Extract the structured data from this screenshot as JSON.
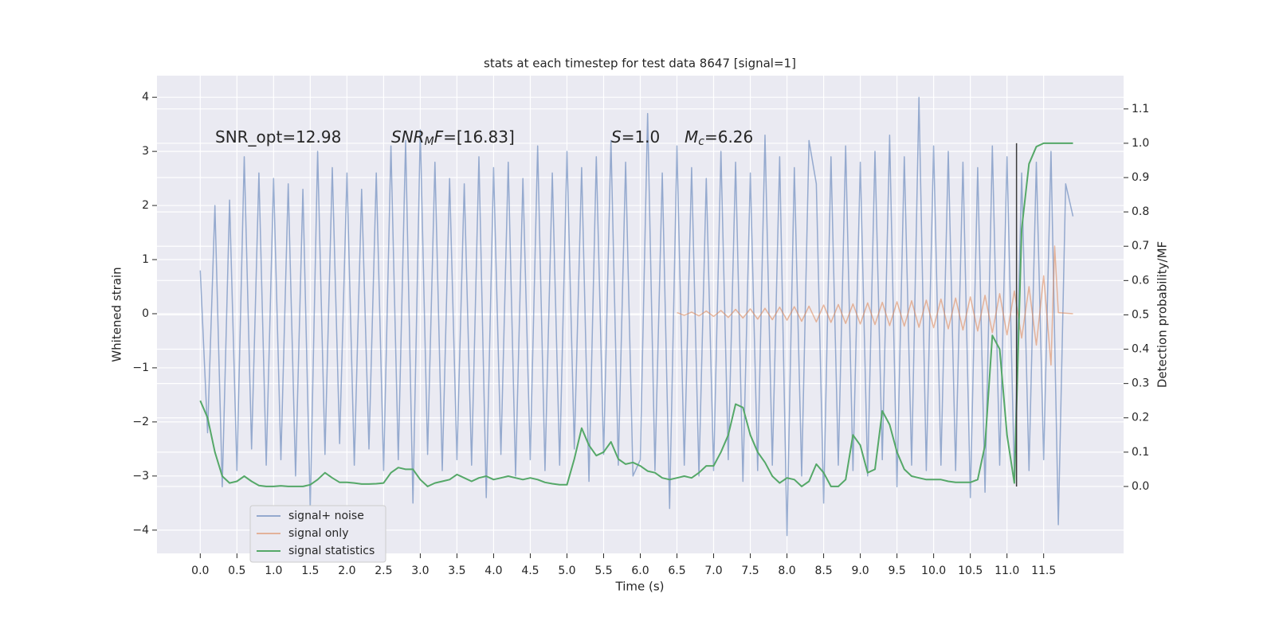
{
  "chart_data": {
    "type": "line",
    "title": "stats at each timestep for test data 8647 [signal=1]",
    "xlabel": "Time (s)",
    "ylabel": "Whitened strain",
    "y2label": "Detection probability/MF",
    "annotations": [
      {
        "parts": [
          {
            "text": "SNR_opt=12.98"
          }
        ]
      },
      {
        "parts": [
          {
            "text": "SNR",
            "italic": true
          },
          {
            "text": "M",
            "italic": true,
            "sub": true
          },
          {
            "text": "F",
            "italic": true
          },
          {
            "text": "=[16.83]"
          }
        ]
      },
      {
        "parts": [
          {
            "text": "S",
            "italic": true
          },
          {
            "text": "=1.0"
          }
        ]
      },
      {
        "parts": [
          {
            "text": "M",
            "italic": true
          },
          {
            "text": "c",
            "italic": true,
            "sub": true
          },
          {
            "text": "=6.26"
          }
        ]
      }
    ],
    "xlim": [
      -0.59,
      12.59
    ],
    "ylim": [
      -4.43,
      4.4
    ],
    "y2lim": [
      -0.195,
      1.197
    ],
    "xticks": [
      {
        "value": 0,
        "label": "0.0"
      },
      {
        "value": 0.5,
        "label": "0.5"
      },
      {
        "value": 1,
        "label": "1.0"
      },
      {
        "value": 1.5,
        "label": "1.5"
      },
      {
        "value": 2,
        "label": "2.0"
      },
      {
        "value": 2.5,
        "label": "2.5"
      },
      {
        "value": 3,
        "label": "3.0"
      },
      {
        "value": 3.5,
        "label": "3.5"
      },
      {
        "value": 4,
        "label": "4.0"
      },
      {
        "value": 4.5,
        "label": "4.5"
      },
      {
        "value": 5,
        "label": "5.0"
      },
      {
        "value": 5.5,
        "label": "5.5"
      },
      {
        "value": 6,
        "label": "6.0"
      },
      {
        "value": 6.5,
        "label": "6.5"
      },
      {
        "value": 7,
        "label": "7.0"
      },
      {
        "value": 7.5,
        "label": "7.5"
      },
      {
        "value": 8,
        "label": "8.0"
      },
      {
        "value": 8.5,
        "label": "8.5"
      },
      {
        "value": 9,
        "label": "9.0"
      },
      {
        "value": 9.5,
        "label": "9.5"
      },
      {
        "value": 10,
        "label": "10.0"
      },
      {
        "value": 10.5,
        "label": "10.5"
      },
      {
        "value": 11,
        "label": "11.0"
      },
      {
        "value": 11.5,
        "label": "11.5"
      }
    ],
    "yticks": [
      {
        "value": -4,
        "label": "−4"
      },
      {
        "value": -3,
        "label": "−3"
      },
      {
        "value": -2,
        "label": "−2"
      },
      {
        "value": -1,
        "label": "−1"
      },
      0,
      1,
      2,
      3,
      4
    ],
    "y2ticks": [
      {
        "value": 0,
        "label": "0.0"
      },
      {
        "value": 0.1,
        "label": "0.1"
      },
      {
        "value": 0.2,
        "label": "0.2"
      },
      {
        "value": 0.3,
        "label": "0.3"
      },
      {
        "value": 0.4,
        "label": "0.4"
      },
      {
        "value": 0.5,
        "label": "0.5"
      },
      {
        "value": 0.6,
        "label": "0.6"
      },
      {
        "value": 0.7,
        "label": "0.7"
      },
      {
        "value": 0.8,
        "label": "0.8"
      },
      {
        "value": 0.9,
        "label": "0.9"
      },
      {
        "value": 1,
        "label": "1.0"
      },
      {
        "value": 1.1,
        "label": "1.1"
      }
    ],
    "grid": true,
    "legend": "lower left",
    "x": [
      0,
      0.1,
      0.2,
      0.3,
      0.4,
      0.5,
      0.6,
      0.7,
      0.8,
      0.9,
      1,
      1.1,
      1.2,
      1.3,
      1.4,
      1.5,
      1.6,
      1.7,
      1.8,
      1.9,
      2,
      2.1,
      2.2,
      2.3,
      2.4,
      2.5,
      2.6,
      2.7,
      2.8,
      2.9,
      3,
      3.1,
      3.2,
      3.3,
      3.4,
      3.5,
      3.6,
      3.7,
      3.8,
      3.9,
      4,
      4.1,
      4.2,
      4.3,
      4.4,
      4.5,
      4.6,
      4.7,
      4.8,
      4.9,
      5,
      5.1,
      5.2,
      5.3,
      5.4,
      5.5,
      5.6,
      5.7,
      5.8,
      5.9,
      6,
      6.1,
      6.2,
      6.3,
      6.4,
      6.5,
      6.6,
      6.7,
      6.8,
      6.9,
      7,
      7.1,
      7.2,
      7.3,
      7.4,
      7.5,
      7.6,
      7.7,
      7.8,
      7.9,
      8,
      8.1,
      8.2,
      8.3,
      8.4,
      8.5,
      8.6,
      8.7,
      8.8,
      8.9,
      9,
      9.1,
      9.2,
      9.3,
      9.4,
      9.5,
      9.6,
      9.7,
      9.8,
      9.9,
      10,
      10.1,
      10.2,
      10.3,
      10.4,
      10.5,
      10.6,
      10.7,
      10.8,
      10.9,
      11,
      11.1,
      11.2,
      11.3,
      11.4,
      11.5,
      11.6,
      11.7,
      11.8,
      11.9
    ],
    "series": [
      {
        "name": "signal+ noise",
        "color": "#4c72b0",
        "opacity": 0.55,
        "values": [
          0.8,
          -2.2,
          2.0,
          -3.2,
          2.1,
          -2.9,
          2.9,
          -2.5,
          2.6,
          -2.8,
          2.5,
          -2.7,
          2.4,
          -3.0,
          2.3,
          -3.6,
          3.0,
          -2.6,
          2.7,
          -2.4,
          2.6,
          -2.8,
          2.3,
          -2.5,
          2.6,
          -2.9,
          3.1,
          -2.7,
          3.2,
          -3.5,
          3.4,
          -2.6,
          2.8,
          -2.9,
          2.5,
          -2.7,
          2.4,
          -2.8,
          2.9,
          -3.4,
          2.7,
          -2.6,
          2.8,
          -3.0,
          2.5,
          -2.7,
          3.1,
          -2.9,
          2.6,
          -2.8,
          3.0,
          -2.5,
          2.7,
          -3.1,
          2.9,
          -2.6,
          3.2,
          -2.8,
          2.8,
          -3.0,
          -2.7,
          3.7,
          -2.9,
          2.6,
          -3.6,
          3.1,
          -2.8,
          2.7,
          -3.0,
          2.5,
          -2.9,
          3.0,
          -2.7,
          2.8,
          -3.1,
          2.6,
          -2.9,
          3.3,
          -2.8,
          2.9,
          -4.1,
          2.7,
          -3.0,
          3.2,
          2.4,
          -3.5,
          2.9,
          -2.8,
          3.1,
          -2.9,
          2.8,
          -3.0,
          3.0,
          -2.7,
          3.3,
          -3.2,
          2.9,
          -2.8,
          4.0,
          -2.9,
          3.1,
          -2.8,
          3.0,
          -2.9,
          2.8,
          -3.4,
          2.7,
          -3.3,
          3.1,
          -2.8,
          2.9,
          -3.0,
          2.6,
          -2.9,
          2.8,
          -2.7,
          3.0,
          -3.9,
          2.4,
          1.8
        ]
      },
      {
        "name": "signal only",
        "color": "#dd8452",
        "opacity": 0.55,
        "x": [
          6.5,
          6.6,
          6.7,
          6.8,
          6.9,
          7,
          7.1,
          7.2,
          7.3,
          7.4,
          7.5,
          7.6,
          7.7,
          7.8,
          7.9,
          8,
          8.1,
          8.2,
          8.3,
          8.4,
          8.5,
          8.6,
          8.7,
          8.8,
          8.9,
          9,
          9.1,
          9.2,
          9.3,
          9.4,
          9.5,
          9.6,
          9.7,
          9.8,
          9.9,
          10,
          10.1,
          10.2,
          10.3,
          10.4,
          10.5,
          10.6,
          10.7,
          10.8,
          10.9,
          11,
          11.1,
          11.2,
          11.3,
          11.4,
          11.5,
          11.6,
          11.65,
          11.7,
          11.9
        ],
        "values": [
          0.02,
          -0.03,
          0.03,
          -0.04,
          0.05,
          -0.05,
          0.06,
          -0.07,
          0.08,
          -0.08,
          0.09,
          -0.1,
          0.1,
          -0.11,
          0.12,
          -0.12,
          0.13,
          -0.14,
          0.14,
          -0.15,
          0.16,
          -0.16,
          0.17,
          -0.18,
          0.18,
          -0.19,
          0.2,
          -0.2,
          0.21,
          -0.22,
          0.22,
          -0.23,
          0.24,
          -0.25,
          0.25,
          -0.26,
          0.27,
          -0.28,
          0.29,
          -0.3,
          0.31,
          -0.32,
          0.34,
          -0.35,
          0.37,
          -0.39,
          0.42,
          -0.45,
          0.5,
          -0.58,
          0.7,
          -0.95,
          1.25,
          0.02,
          0
        ]
      },
      {
        "name": "signal statistics",
        "color": "#55a868",
        "opacity": 1,
        "axis": "y2",
        "values": [
          0.25,
          0.2,
          0.1,
          0.03,
          0.01,
          0.015,
          0.03,
          0.015,
          0.003,
          0,
          0,
          0.002,
          0,
          0,
          0,
          0.005,
          0.02,
          0.04,
          0.025,
          0.012,
          0.012,
          0.01,
          0.007,
          0.007,
          0.008,
          0.01,
          0.04,
          0.055,
          0.05,
          0.05,
          0.02,
          0,
          0.01,
          0.015,
          0.02,
          0.035,
          0.025,
          0.015,
          0.025,
          0.03,
          0.02,
          0.025,
          0.03,
          0.025,
          0.02,
          0.025,
          0.02,
          0.012,
          0.008,
          0.005,
          0.005,
          0.08,
          0.17,
          0.12,
          0.09,
          0.1,
          0.13,
          0.08,
          0.065,
          0.07,
          0.06,
          0.045,
          0.04,
          0.025,
          0.02,
          0.025,
          0.03,
          0.025,
          0.04,
          0.06,
          0.06,
          0.1,
          0.15,
          0.24,
          0.23,
          0.15,
          0.1,
          0.07,
          0.03,
          0.01,
          0.025,
          0.02,
          0,
          0.015,
          0.065,
          0.04,
          0,
          0,
          0.02,
          0.15,
          0.12,
          0.04,
          0.05,
          0.22,
          0.18,
          0.1,
          0.05,
          0.03,
          0.025,
          0.02,
          0.02,
          0.02,
          0.015,
          0.012,
          0.012,
          0.012,
          0.02,
          0.12,
          0.44,
          0.4,
          0.15,
          0.01,
          0.75,
          0.94,
          0.99,
          1,
          1,
          1,
          1,
          1
        ]
      }
    ],
    "vline": {
      "x": 11.13,
      "y2min": 0,
      "y2max": 1,
      "color": "#3a3a3a"
    }
  }
}
